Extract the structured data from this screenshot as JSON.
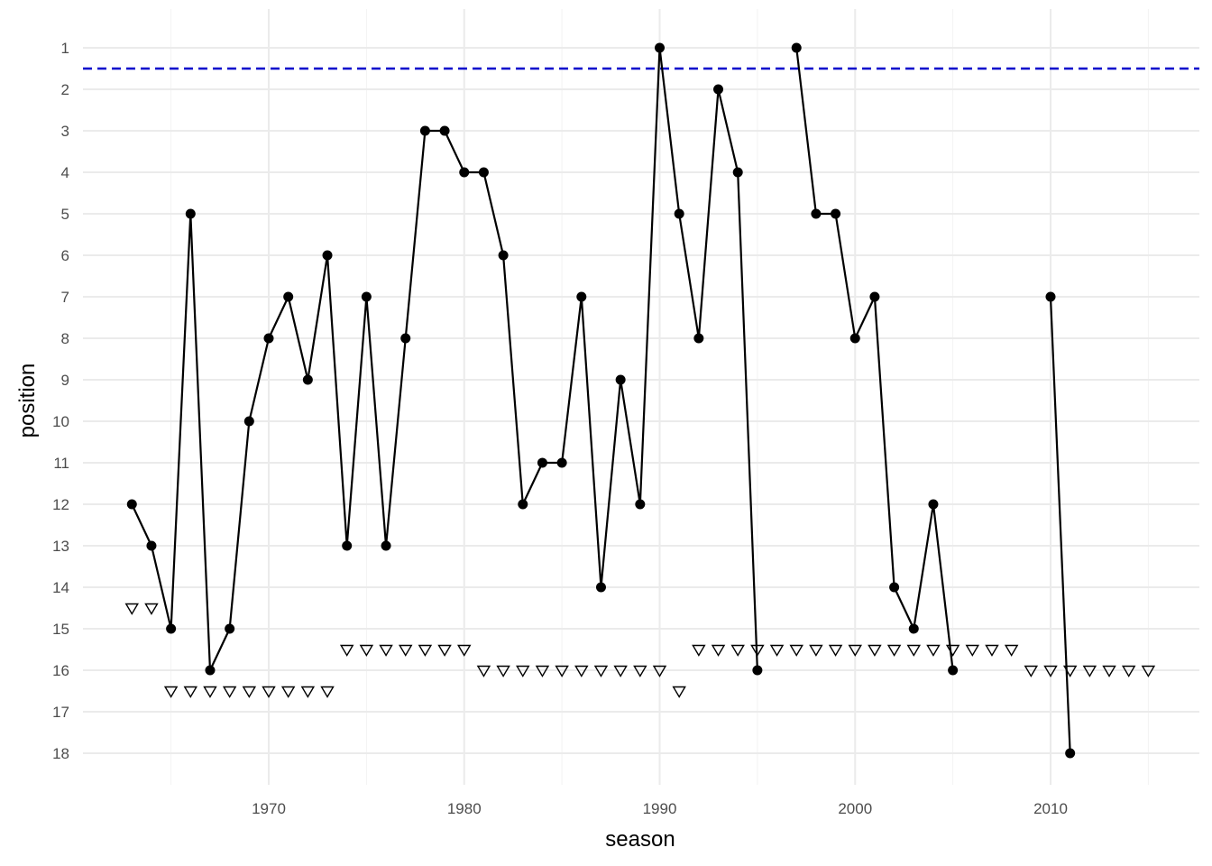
{
  "chart_data": {
    "type": "line",
    "xlabel": "season",
    "ylabel": "position",
    "xlim": [
      1960.5,
      2017.5
    ],
    "ylim": [
      18.75,
      0.2
    ],
    "y_reversed": true,
    "grid": true,
    "x_ticks": [
      1970,
      1980,
      1990,
      2000,
      2010
    ],
    "x_tick_labels": [
      "1970",
      "1980",
      "1990",
      "2000",
      "2010"
    ],
    "y_ticks": [
      1,
      2,
      3,
      4,
      5,
      6,
      7,
      8,
      9,
      10,
      11,
      12,
      13,
      14,
      15,
      16,
      17,
      18
    ],
    "y_tick_labels": [
      "1",
      "2",
      "3",
      "4",
      "5",
      "6",
      "7",
      "8",
      "9",
      "10",
      "11",
      "12",
      "13",
      "14",
      "15",
      "16",
      "17",
      "18"
    ],
    "reference_line": {
      "y": 1.5,
      "style": "dashed",
      "color": "#0000cc"
    },
    "series": [
      {
        "marker": "filled-circle",
        "color": "#000000",
        "segments": [
          {
            "x": [
              1963,
              1964,
              1965,
              1966,
              1967,
              1968,
              1969,
              1970,
              1971,
              1972,
              1973,
              1974,
              1975,
              1976,
              1977,
              1978,
              1979,
              1980,
              1981,
              1982,
              1983,
              1984,
              1985,
              1986,
              1987,
              1988,
              1989,
              1990,
              1991,
              1992,
              1993,
              1994,
              1995
            ],
            "y": [
              12,
              13,
              15,
              5,
              16,
              15,
              10,
              8,
              7,
              9,
              6,
              13,
              7,
              13,
              8,
              3,
              3,
              4,
              4,
              6,
              12,
              11,
              11,
              7,
              14,
              9,
              12,
              1,
              5,
              8,
              2,
              4,
              16
            ]
          },
          {
            "x": [
              1997,
              1998,
              1999,
              2000,
              2001,
              2002,
              2003,
              2004,
              2005
            ],
            "y": [
              1,
              5,
              5,
              8,
              7,
              14,
              15,
              12,
              16
            ]
          },
          {
            "x": [
              2010,
              2011
            ],
            "y": [
              7,
              18
            ]
          }
        ]
      },
      {
        "marker": "open-triangle-down",
        "color": "#000000",
        "x": [
          1963,
          1964,
          1965,
          1966,
          1967,
          1968,
          1969,
          1970,
          1971,
          1972,
          1973,
          1974,
          1975,
          1976,
          1977,
          1978,
          1979,
          1980,
          1981,
          1982,
          1983,
          1984,
          1985,
          1986,
          1987,
          1988,
          1989,
          1990,
          1991,
          1992,
          1993,
          1994,
          1995,
          1996,
          1997,
          1998,
          1999,
          2000,
          2001,
          2002,
          2003,
          2004,
          2005,
          2006,
          2007,
          2008,
          2009,
          2010,
          2011,
          2012,
          2013,
          2014,
          2015
        ],
        "y": [
          14.5,
          14.5,
          16.5,
          16.5,
          16.5,
          16.5,
          16.5,
          16.5,
          16.5,
          16.5,
          16.5,
          15.5,
          15.5,
          15.5,
          15.5,
          15.5,
          15.5,
          15.5,
          16,
          16,
          16,
          16,
          16,
          16,
          16,
          16,
          16,
          16,
          16.5,
          15.5,
          15.5,
          15.5,
          15.5,
          15.5,
          15.5,
          15.5,
          15.5,
          15.5,
          15.5,
          15.5,
          15.5,
          15.5,
          15.5,
          15.5,
          15.5,
          15.5,
          16,
          16,
          16,
          16,
          16,
          16,
          16
        ]
      }
    ]
  }
}
